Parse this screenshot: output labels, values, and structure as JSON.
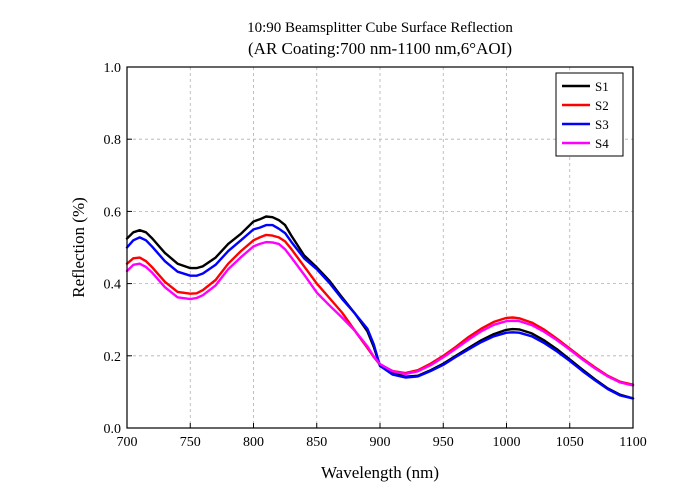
{
  "chart_data": {
    "type": "line",
    "title": "10:90 Beamsplitter Cube Surface Reflection",
    "subtitle": "(AR Coating:700 nm-1100 nm,6°AOI)",
    "xlabel": "Wavelength (nm)",
    "ylabel": "Reflection (%)",
    "xlim": [
      700,
      1100
    ],
    "ylim": [
      0,
      1.0
    ],
    "x_ticks": [
      "700",
      "750",
      "800",
      "850",
      "900",
      "950",
      "1000",
      "1050",
      "1100"
    ],
    "y_ticks": [
      "0.0",
      "0.2",
      "0.4",
      "0.6",
      "0.8",
      "1.0"
    ],
    "grid": true,
    "legend_position": "top-right",
    "x": [
      700,
      705,
      710,
      715,
      720,
      730,
      740,
      750,
      755,
      760,
      770,
      780,
      790,
      800,
      805,
      810,
      815,
      820,
      825,
      830,
      840,
      850,
      860,
      870,
      880,
      890,
      895,
      900,
      910,
      920,
      930,
      940,
      950,
      960,
      970,
      980,
      990,
      1000,
      1005,
      1010,
      1020,
      1030,
      1040,
      1050,
      1060,
      1070,
      1080,
      1090,
      1100
    ],
    "series": [
      {
        "name": "S1",
        "color": "#000000",
        "values": [
          0.525,
          0.542,
          0.548,
          0.542,
          0.525,
          0.485,
          0.455,
          0.443,
          0.443,
          0.448,
          0.472,
          0.51,
          0.538,
          0.572,
          0.578,
          0.586,
          0.584,
          0.576,
          0.562,
          0.532,
          0.478,
          0.445,
          0.408,
          0.362,
          0.318,
          0.268,
          0.225,
          0.172,
          0.152,
          0.142,
          0.145,
          0.16,
          0.178,
          0.2,
          0.222,
          0.243,
          0.26,
          0.272,
          0.274,
          0.273,
          0.262,
          0.242,
          0.218,
          0.19,
          0.162,
          0.135,
          0.11,
          0.092,
          0.082
        ]
      },
      {
        "name": "S2",
        "color": "#ff0000",
        "values": [
          0.455,
          0.47,
          0.472,
          0.462,
          0.445,
          0.405,
          0.377,
          0.372,
          0.373,
          0.382,
          0.41,
          0.455,
          0.49,
          0.52,
          0.528,
          0.535,
          0.533,
          0.528,
          0.517,
          0.495,
          0.448,
          0.4,
          0.36,
          0.32,
          0.27,
          0.222,
          0.197,
          0.175,
          0.158,
          0.152,
          0.16,
          0.178,
          0.2,
          0.225,
          0.252,
          0.275,
          0.294,
          0.305,
          0.306,
          0.304,
          0.292,
          0.272,
          0.247,
          0.22,
          0.193,
          0.168,
          0.145,
          0.128,
          0.12
        ]
      },
      {
        "name": "S3",
        "color": "#0000ff",
        "values": [
          0.5,
          0.52,
          0.528,
          0.52,
          0.502,
          0.462,
          0.433,
          0.422,
          0.422,
          0.428,
          0.452,
          0.49,
          0.52,
          0.55,
          0.555,
          0.562,
          0.562,
          0.552,
          0.54,
          0.515,
          0.47,
          0.44,
          0.402,
          0.358,
          0.318,
          0.275,
          0.232,
          0.172,
          0.148,
          0.14,
          0.143,
          0.158,
          0.175,
          0.197,
          0.218,
          0.238,
          0.254,
          0.264,
          0.265,
          0.264,
          0.254,
          0.235,
          0.212,
          0.186,
          0.158,
          0.132,
          0.108,
          0.09,
          0.082
        ]
      },
      {
        "name": "S4",
        "color": "#ff00ff",
        "values": [
          0.435,
          0.452,
          0.455,
          0.446,
          0.43,
          0.39,
          0.362,
          0.357,
          0.36,
          0.368,
          0.395,
          0.44,
          0.473,
          0.503,
          0.51,
          0.515,
          0.514,
          0.51,
          0.495,
          0.472,
          0.425,
          0.375,
          0.34,
          0.306,
          0.27,
          0.226,
          0.198,
          0.177,
          0.157,
          0.15,
          0.157,
          0.174,
          0.196,
          0.22,
          0.245,
          0.268,
          0.286,
          0.296,
          0.297,
          0.296,
          0.285,
          0.266,
          0.243,
          0.217,
          0.19,
          0.165,
          0.143,
          0.126,
          0.118
        ]
      }
    ]
  }
}
